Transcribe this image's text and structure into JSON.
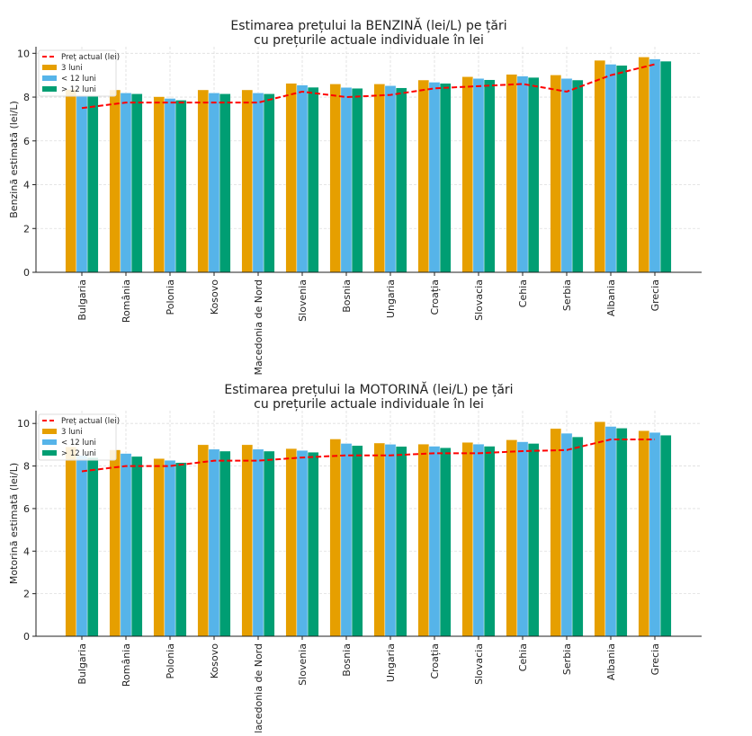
{
  "chart_data": [
    {
      "type": "bar",
      "title": "Estimarea prețului la BENZINĂ (lei/L) pe țări",
      "subtitle": "cu prețurile actuale individuale în lei",
      "ylabel": "Benzină estimată (lei/L)",
      "xlabel": "",
      "ylim": [
        0,
        10.3
      ],
      "yticks": [
        0,
        2,
        4,
        6,
        8,
        10
      ],
      "grid": true,
      "legend_position": "upper-left",
      "categories": [
        "Bulgaria",
        "România",
        "Polonia",
        "Kosovo",
        "Macedonia de Nord",
        "Slovenia",
        "Bosnia",
        "Ungaria",
        "Croația",
        "Slovacia",
        "Cehia",
        "Serbia",
        "Albania",
        "Grecia"
      ],
      "line": {
        "name": "Preț actual (lei)",
        "color": "#ff0000",
        "values": [
          7.5,
          7.75,
          7.75,
          7.75,
          7.75,
          8.25,
          8.0,
          8.1,
          8.4,
          8.5,
          8.6,
          8.25,
          9.0,
          9.5
        ]
      },
      "series": [
        {
          "name": "3 luni",
          "color": "#e69f00",
          "values": [
            8.35,
            8.33,
            8.02,
            8.33,
            8.33,
            8.63,
            8.6,
            8.6,
            8.78,
            8.93,
            9.04,
            9.01,
            9.68,
            9.83
          ]
        },
        {
          "name": "< 12 luni",
          "color": "#56b4e9",
          "values": [
            8.06,
            8.19,
            7.94,
            8.19,
            8.19,
            8.55,
            8.44,
            8.52,
            8.68,
            8.85,
            8.96,
            8.85,
            9.5,
            9.74
          ]
        },
        {
          "name": "> 12 luni",
          "color": "#009e73",
          "values": [
            8.06,
            8.15,
            7.86,
            8.15,
            8.15,
            8.45,
            8.4,
            8.42,
            8.63,
            8.79,
            8.9,
            8.78,
            9.45,
            9.64
          ]
        }
      ]
    },
    {
      "type": "bar",
      "title": "Estimarea prețului la MOTORINĂ (lei/L) pe țări",
      "subtitle": "cu prețurile actuale individuale în lei",
      "ylabel": "Motorină estimată (lei/L)",
      "xlabel": "",
      "ylim": [
        0,
        10.6
      ],
      "yticks": [
        0,
        2,
        4,
        6,
        8,
        10
      ],
      "grid": true,
      "legend_position": "upper-left",
      "categories": [
        "Bulgaria",
        "România",
        "Polonia",
        "Kosovo",
        "Macedonia de Nord",
        "Slovenia",
        "Bosnia",
        "Ungaria",
        "Croația",
        "Slovacia",
        "Cehia",
        "Serbia",
        "Albania",
        "Grecia"
      ],
      "line": {
        "name": "Preț actual (lei)",
        "color": "#ff0000",
        "values": [
          7.75,
          8.0,
          8.0,
          8.25,
          8.25,
          8.4,
          8.5,
          8.5,
          8.6,
          8.6,
          8.7,
          8.75,
          9.25,
          9.25
        ]
      },
      "series": [
        {
          "name": "3 luni",
          "color": "#e69f00",
          "values": [
            8.9,
            8.76,
            8.35,
            9.0,
            9.0,
            8.82,
            9.27,
            9.08,
            9.03,
            9.11,
            9.23,
            9.76,
            10.08,
            9.66
          ]
        },
        {
          "name": "< 12 luni",
          "color": "#56b4e9",
          "values": [
            8.5,
            8.59,
            8.27,
            8.79,
            8.79,
            8.73,
            9.06,
            9.02,
            8.93,
            9.03,
            9.14,
            9.54,
            9.86,
            9.58
          ]
        },
        {
          "name": "> 12 luni",
          "color": "#009e73",
          "values": [
            8.4,
            8.45,
            8.16,
            8.7,
            8.7,
            8.65,
            8.96,
            8.92,
            8.86,
            8.93,
            9.06,
            9.37,
            9.78,
            9.45
          ]
        }
      ]
    }
  ]
}
